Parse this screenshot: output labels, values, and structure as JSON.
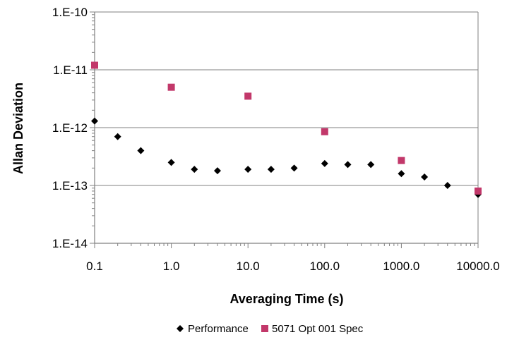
{
  "chart_data": {
    "type": "scatter",
    "title": "",
    "xlabel": "Averaging Time (s)",
    "ylabel": "Allan Deviation",
    "x_scale": "log",
    "y_scale": "log",
    "xlim": [
      0.1,
      10000
    ],
    "ylim": [
      1e-14,
      1e-10
    ],
    "x_ticks": [
      0.1,
      1,
      10,
      100,
      1000,
      10000
    ],
    "x_tick_labels": [
      "0.1",
      "1.0",
      "10.0",
      "100.0",
      "1000.0",
      "10000.0"
    ],
    "y_ticks": [
      1e-14,
      1e-13,
      1e-12,
      1e-11,
      1e-10
    ],
    "y_tick_labels": [
      "1.E-14",
      "1.E-13",
      "1.E-12",
      "1.E-11",
      "1.E-10"
    ],
    "grid": "horizontal major gridlines",
    "legend_position": "bottom",
    "series": [
      {
        "name": "Performance",
        "marker": "diamond",
        "color": "#000000",
        "points": [
          [
            0.1,
            1.3e-12
          ],
          [
            0.2,
            7e-13
          ],
          [
            0.4,
            4e-13
          ],
          [
            1,
            2.5e-13
          ],
          [
            2,
            1.9e-13
          ],
          [
            4,
            1.8e-13
          ],
          [
            10,
            1.9e-13
          ],
          [
            20,
            1.9e-13
          ],
          [
            40,
            2e-13
          ],
          [
            100,
            2.4e-13
          ],
          [
            200,
            2.3e-13
          ],
          [
            400,
            2.3e-13
          ],
          [
            1000,
            1.6e-13
          ],
          [
            2000,
            1.4e-13
          ],
          [
            4000,
            1e-13
          ],
          [
            10000,
            7e-14
          ]
        ]
      },
      {
        "name": "5071 Opt 001 Spec",
        "marker": "square",
        "color": "#c2386a",
        "points": [
          [
            0.1,
            1.2e-11
          ],
          [
            1,
            5e-12
          ],
          [
            10,
            3.5e-12
          ],
          [
            100,
            8.5e-13
          ],
          [
            1000,
            2.7e-13
          ],
          [
            10000,
            8e-14
          ]
        ]
      }
    ]
  }
}
